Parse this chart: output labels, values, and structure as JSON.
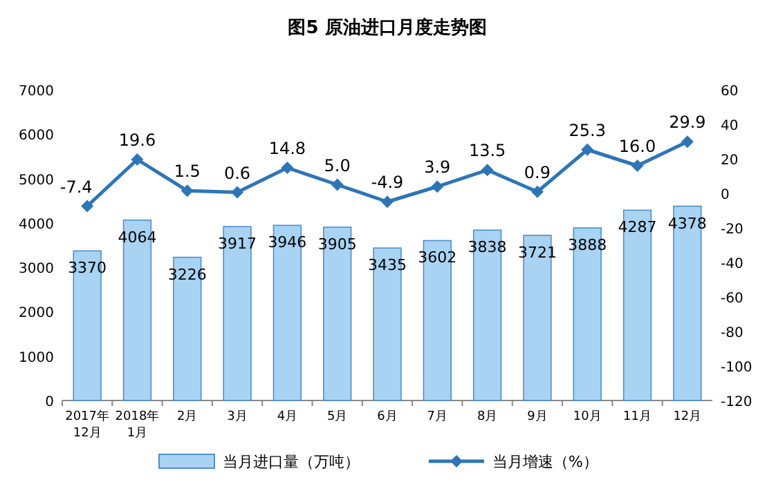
{
  "chart_data": {
    "type": "bar",
    "title": "图5  原油进口月度走势图",
    "categories": [
      "2017年12月",
      "2018年1月",
      "2月",
      "3月",
      "4月",
      "5月",
      "6月",
      "7月",
      "8月",
      "9月",
      "10月",
      "11月",
      "12月"
    ],
    "series": [
      {
        "name": "当月进口量（万吨）",
        "color": "#a9d3f2",
        "values": [
          3370,
          4064,
          3226,
          3917,
          3946,
          3905,
          3435,
          3602,
          3838,
          3721,
          3888,
          4287,
          4378
        ]
      },
      {
        "name": "当月增速（%）",
        "type": "line",
        "axis": "y2",
        "color": "#2e75b6",
        "values": [
          -7.4,
          19.6,
          1.5,
          0.6,
          14.8,
          5.0,
          -4.9,
          3.9,
          13.5,
          0.9,
          25.3,
          16.0,
          29.9
        ],
        "value_labels": [
          "-7.4",
          "19.6",
          "1.5",
          "0.6",
          "14.8",
          "5.0",
          "-4.9",
          "3.9",
          "13.5",
          "0.9",
          "25.3",
          "16.0",
          "29.9"
        ]
      }
    ],
    "ylim": [
      0,
      7000
    ],
    "yticks": [
      0,
      1000,
      2000,
      3000,
      4000,
      5000,
      6000,
      7000
    ],
    "y2lim": [
      -120,
      60
    ],
    "y2ticks": [
      -120,
      -100,
      -80,
      -60,
      -40,
      -20,
      0,
      20,
      40,
      60
    ],
    "data_labels": true,
    "legend": "bottom",
    "marker": "diamond",
    "line_style": "solid"
  }
}
